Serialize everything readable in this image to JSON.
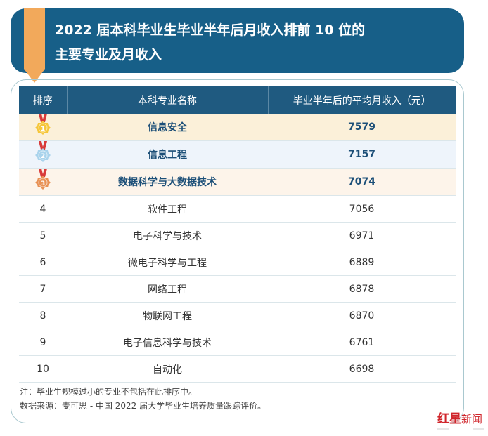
{
  "header": {
    "title_line1": "2022 届本科毕业生毕业半年后月收入排前 10 位的",
    "title_line2": "主要专业及月收入"
  },
  "table": {
    "columns": [
      "排序",
      "本科专业名称",
      "毕业半年后的平均月收入（元）"
    ],
    "rows": [
      {
        "rank": "1",
        "major": "信息安全",
        "income": "7579",
        "medal": "gold"
      },
      {
        "rank": "2",
        "major": "信息工程",
        "income": "7157",
        "medal": "silver"
      },
      {
        "rank": "3",
        "major": "数据科学与大数据技术",
        "income": "7074",
        "medal": "bronze"
      },
      {
        "rank": "4",
        "major": "软件工程",
        "income": "7056"
      },
      {
        "rank": "5",
        "major": "电子科学与技术",
        "income": "6971"
      },
      {
        "rank": "6",
        "major": "微电子科学与工程",
        "income": "6889"
      },
      {
        "rank": "7",
        "major": "网络工程",
        "income": "6878"
      },
      {
        "rank": "8",
        "major": "物联网工程",
        "income": "6870"
      },
      {
        "rank": "9",
        "major": "电子信息科学与技术",
        "income": "6761"
      },
      {
        "rank": "10",
        "major": "自动化",
        "income": "6698"
      }
    ]
  },
  "notes": {
    "note": "注：毕业生规模过小的专业不包括在此排序中。",
    "source": "数据来源：麦可思 - 中国 2022 届大学毕业生培养质量跟踪评价。"
  },
  "watermark": {
    "text": "红星新闻"
  },
  "colors": {
    "banner": "#175f88",
    "header": "#1f5a80",
    "ribbon": "#f2a95b",
    "gold": "#f5c63a",
    "silver": "#a9d3ec",
    "bronze": "#e89155"
  }
}
